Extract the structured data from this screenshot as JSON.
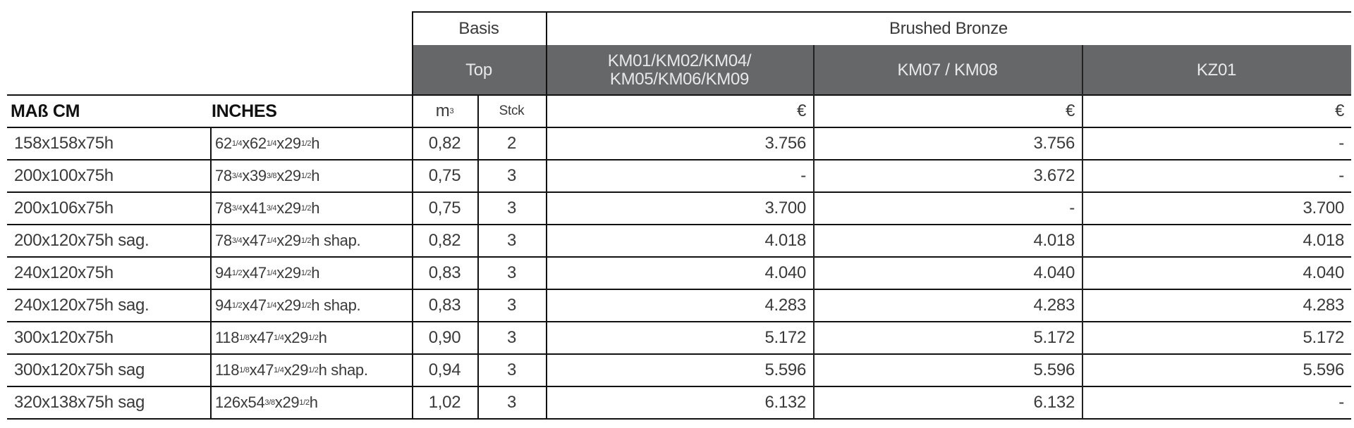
{
  "header": {
    "basis": "Basis",
    "brushed_bronze": "Brushed Bronze",
    "top": "Top",
    "km_group_1_line1": "KM01/KM02/KM04/",
    "km_group_1_line2": "KM05/KM06/KM09",
    "km_group_2": "KM07 / KM08",
    "kz01": "KZ01",
    "col_mass_cm": "MAß CM",
    "col_inches": "INCHES",
    "col_m3_base": "m",
    "col_m3_sup": "3",
    "col_stck": "Stck",
    "currency": "€"
  },
  "colors": {
    "header_dark": "#666769",
    "lines": "#111111",
    "text": "#3a3a3a"
  },
  "rows": [
    {
      "cm": "158x158x75h",
      "inches": [
        "62",
        "1/4",
        "x62",
        "1/4",
        "x29",
        "1/2",
        "h"
      ],
      "m3": "0,82",
      "stck": "2",
      "p1": "3.756",
      "p2": "3.756",
      "p3": "-"
    },
    {
      "cm": "200x100x75h",
      "inches": [
        "78",
        "3/4",
        "x39",
        "3/8",
        "x29",
        "1/2",
        "h"
      ],
      "m3": "0,75",
      "stck": "3",
      "p1": "-",
      "p2": "3.672",
      "p3": "-"
    },
    {
      "cm": "200x106x75h",
      "inches": [
        "78",
        "3/4",
        "x41",
        "3/4",
        "x29",
        "1/2",
        "h"
      ],
      "m3": "0,75",
      "stck": "3",
      "p1": "3.700",
      "p2": "-",
      "p3": "3.700"
    },
    {
      "cm": "200x120x75h sag.",
      "inches": [
        "78",
        "3/4",
        "x47",
        "1/4",
        "x29",
        "1/2",
        "h shap."
      ],
      "m3": "0,82",
      "stck": "3",
      "p1": "4.018",
      "p2": "4.018",
      "p3": "4.018"
    },
    {
      "cm": "240x120x75h",
      "inches": [
        "94",
        "1/2",
        "x47",
        "1/4",
        "x29",
        "1/2",
        "h"
      ],
      "m3": "0,83",
      "stck": "3",
      "p1": "4.040",
      "p2": "4.040",
      "p3": "4.040"
    },
    {
      "cm": "240x120x75h sag.",
      "inches": [
        "94",
        "1/2",
        "x47",
        "1/4",
        "x29",
        "1/2",
        "h shap."
      ],
      "m3": "0,83",
      "stck": "3",
      "p1": "4.283",
      "p2": "4.283",
      "p3": "4.283"
    },
    {
      "cm": "300x120x75h",
      "inches": [
        "118",
        "1/8",
        "x47",
        "1/4",
        "x29",
        "1/2",
        "h"
      ],
      "m3": "0,90",
      "stck": "3",
      "p1": "5.172",
      "p2": "5.172",
      "p3": "5.172"
    },
    {
      "cm": "300x120x75h sag",
      "inches": [
        "118",
        "1/8",
        "x47",
        "1/4",
        "x29",
        "1/2",
        "h shap."
      ],
      "m3": "0,94",
      "stck": "3",
      "p1": "5.596",
      "p2": "5.596",
      "p3": "5.596"
    },
    {
      "cm": "320x138x75h sag",
      "inches": [
        "126x54",
        "3/8",
        "x29",
        "1/2",
        "h"
      ],
      "m3": "1,02",
      "stck": "3",
      "p1": "6.132",
      "p2": "6.132",
      "p3": "-"
    }
  ]
}
